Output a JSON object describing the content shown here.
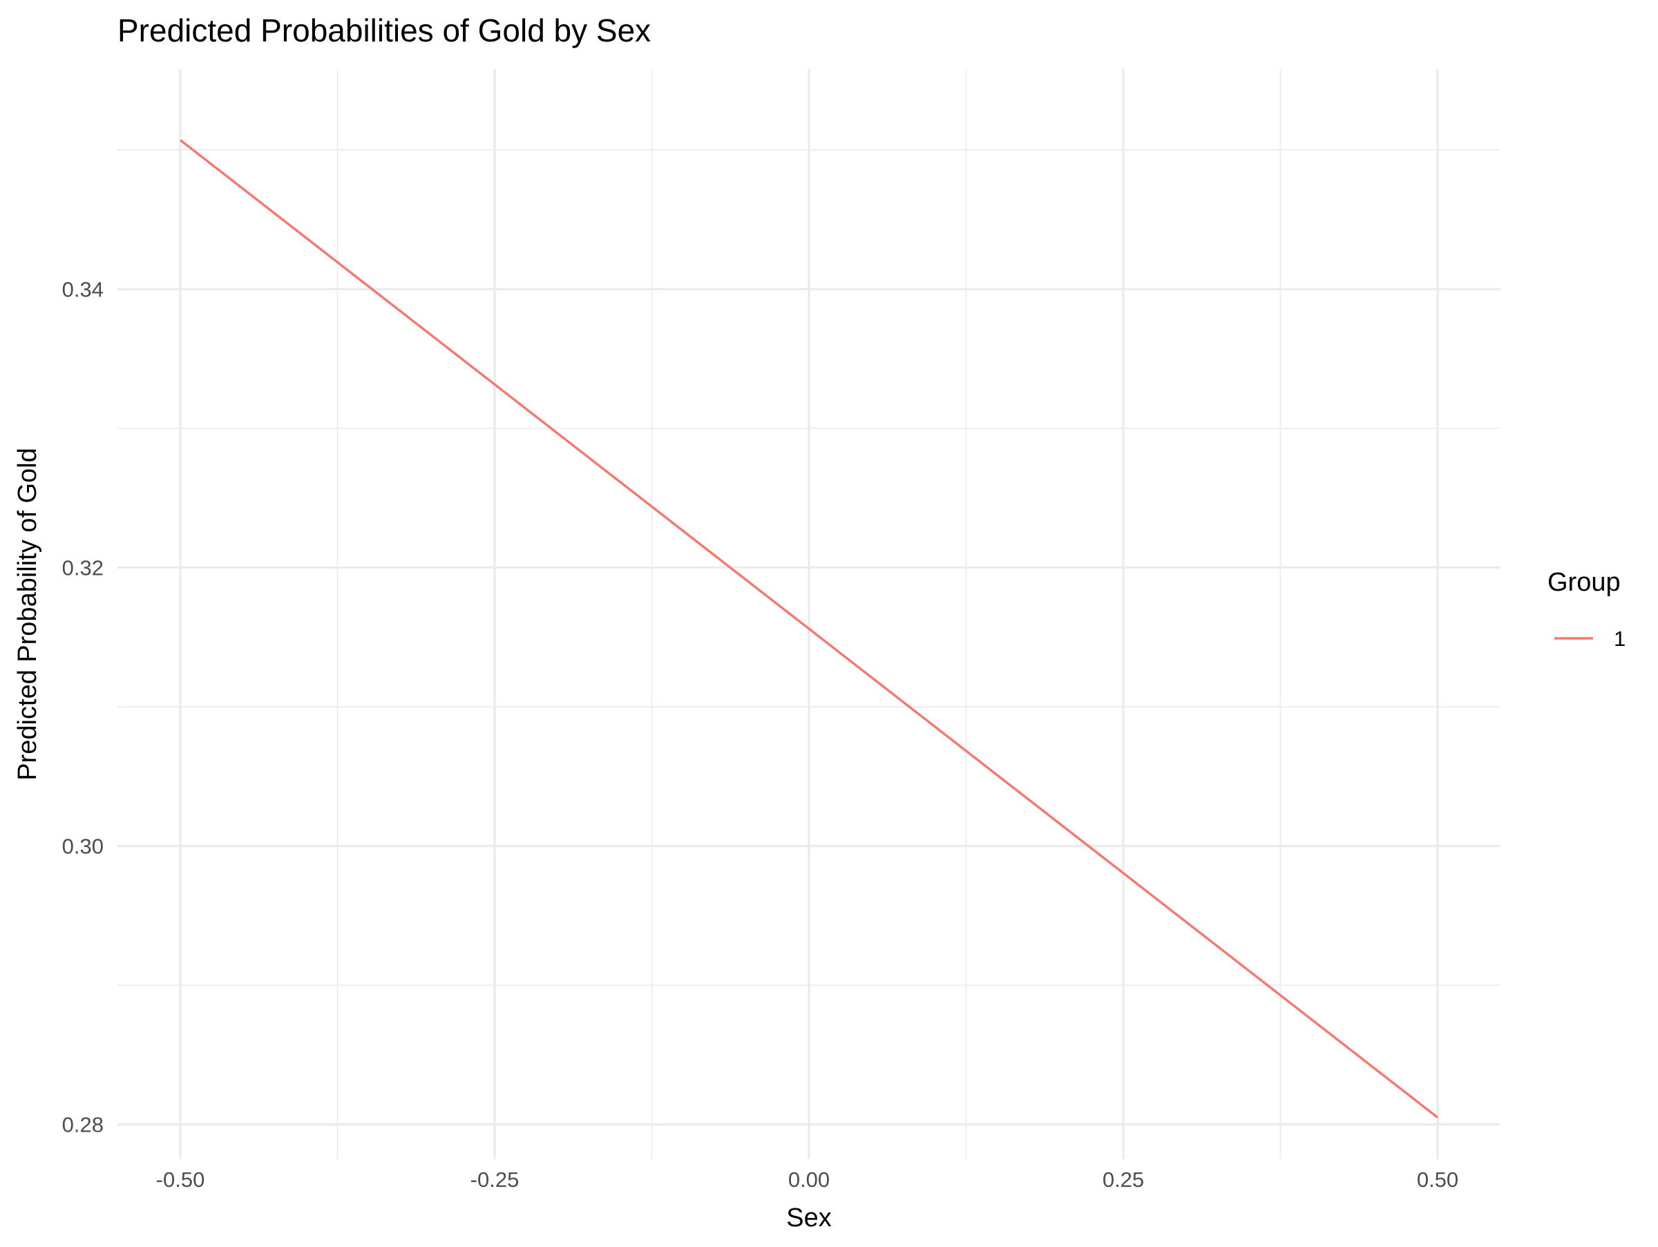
{
  "chart_data": {
    "type": "line",
    "title": "Predicted Probabilities of Gold by Sex",
    "xlabel": "Sex",
    "ylabel": "Predicted Probability of Gold",
    "x": [
      -0.5,
      0.5
    ],
    "series": [
      {
        "name": "1",
        "values": [
          0.3507,
          0.2805
        ],
        "color": "#F8766D"
      }
    ],
    "xlim": [
      -0.55,
      0.55
    ],
    "ylim": [
      0.2775,
      0.3558
    ],
    "x_ticks": [
      -0.5,
      -0.25,
      0.0,
      0.25,
      0.5
    ],
    "x_tick_labels": [
      "-0.50",
      "-0.25",
      "0.00",
      "0.25",
      "0.50"
    ],
    "y_ticks": [
      0.28,
      0.3,
      0.32,
      0.34
    ],
    "y_tick_labels": [
      "0.28",
      "0.30",
      "0.32",
      "0.34"
    ],
    "grid": true,
    "legend": {
      "title": "Group",
      "placement": "right"
    }
  }
}
